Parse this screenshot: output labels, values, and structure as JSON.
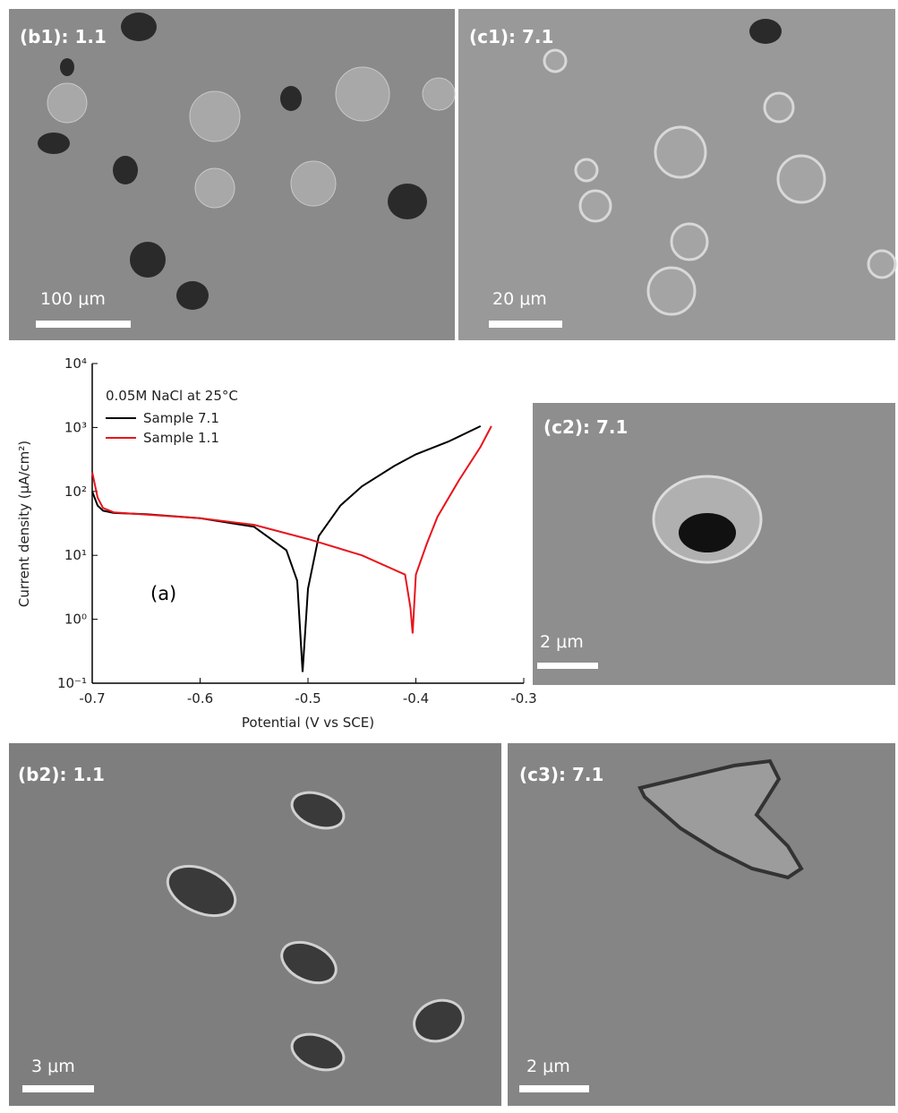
{
  "panels": [
    {
      "label": "(b1): 1.1",
      "scale": "100 μm"
    },
    {
      "label": "(c1): 7.1",
      "scale": "20 μm"
    },
    {
      "label": "(c2): 7.1",
      "scale": "2 μm"
    },
    {
      "label": "(b2): 1.1",
      "scale": "3 μm"
    },
    {
      "label": "(c3): 7.1",
      "scale": "2 μm"
    }
  ],
  "chart_data": {
    "type": "line",
    "x_label": "Potential (V vs SCE)",
    "y_label": "Current density (μA/cm²)",
    "legend_title": "0.05M NaCl at 25°C",
    "annotation": "(a)",
    "xlim": [
      -0.7,
      -0.3
    ],
    "xticks": [
      -0.7,
      -0.6,
      -0.5,
      -0.4,
      -0.3
    ],
    "ylim": [
      0.1,
      10000
    ],
    "log_y": true,
    "yticks": [
      {
        "value": 0.1,
        "label": "10⁻¹"
      },
      {
        "value": 1,
        "label": "10⁰"
      },
      {
        "value": 10,
        "label": "10¹"
      },
      {
        "value": 100,
        "label": "10²"
      },
      {
        "value": 1000,
        "label": "10³"
      },
      {
        "value": 10000,
        "label": "10⁴"
      }
    ],
    "series": [
      {
        "name": "Sample 7.1",
        "color": "#000000",
        "x": [
          -0.7,
          -0.695,
          -0.69,
          -0.68,
          -0.65,
          -0.6,
          -0.55,
          -0.52,
          -0.51,
          -0.505,
          -0.5,
          -0.49,
          -0.47,
          -0.45,
          -0.42,
          -0.4,
          -0.37,
          -0.34
        ],
        "values": [
          100,
          60,
          50,
          46,
          44,
          38,
          28,
          12,
          4,
          0.15,
          3,
          20,
          60,
          120,
          250,
          380,
          600,
          1050
        ]
      },
      {
        "name": "Sample 1.1",
        "color": "#e8141b",
        "x": [
          -0.7,
          -0.695,
          -0.69,
          -0.68,
          -0.6,
          -0.55,
          -0.5,
          -0.45,
          -0.41,
          -0.405,
          -0.403,
          -0.4,
          -0.39,
          -0.38,
          -0.36,
          -0.34,
          -0.33
        ],
        "values": [
          200,
          80,
          55,
          47,
          38,
          30,
          18,
          10,
          5,
          1.5,
          0.6,
          5,
          15,
          40,
          150,
          500,
          1050
        ]
      }
    ]
  }
}
